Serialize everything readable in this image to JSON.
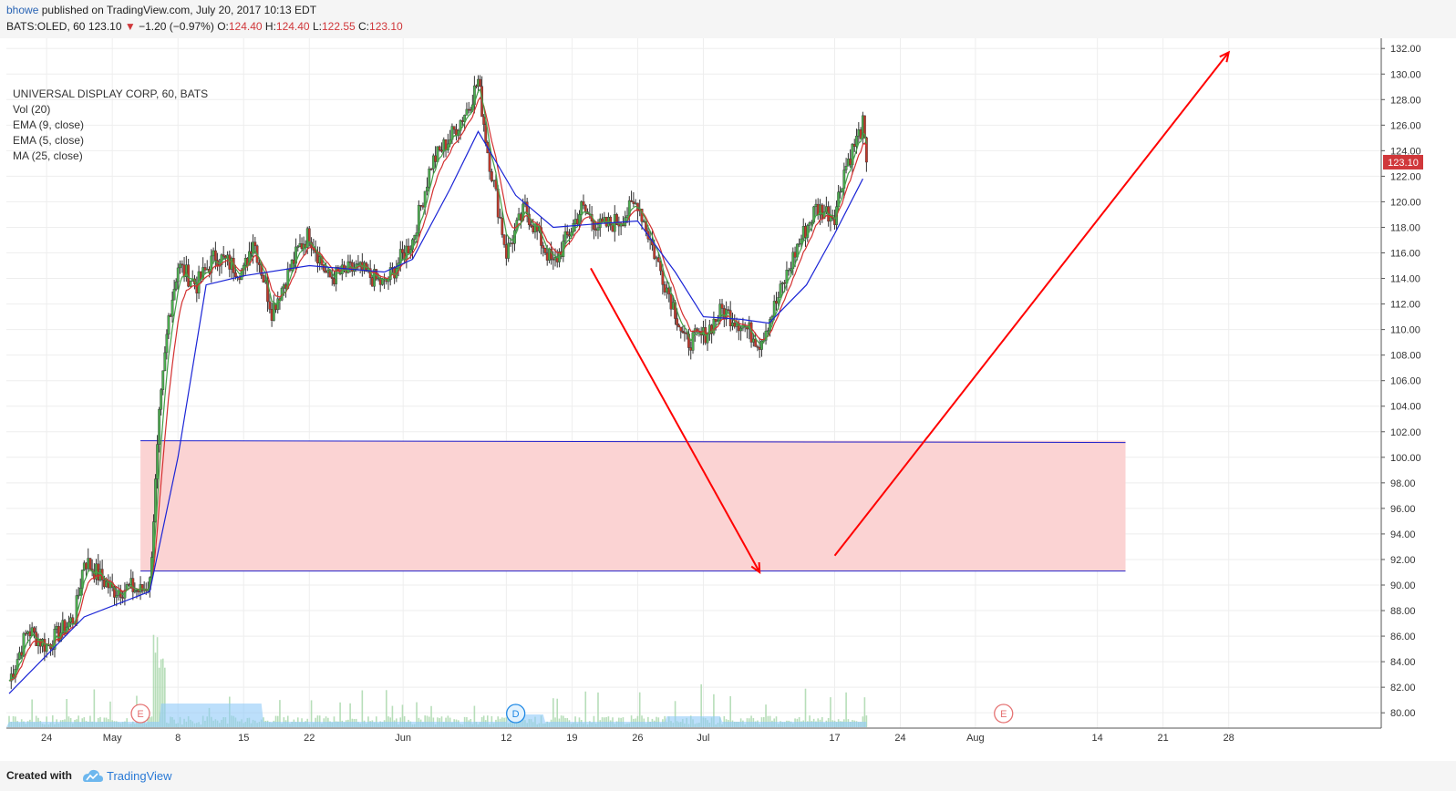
{
  "header": {
    "user": "bhowe",
    "published": "published on TradingView.com, July 20, 2017 10:13 EDT",
    "symbol": "BATS:OLED, 60",
    "last": "123.10",
    "change": "−1.20 (−0.97%)",
    "o_label": "O:",
    "o_value": "124.40",
    "h_label": "H:",
    "h_value": "124.40",
    "l_label": "L:",
    "l_value": "122.55",
    "c_label": "C:",
    "c_value": "123.10"
  },
  "legend": {
    "title": "UNIVERSAL DISPLAY CORP, 60, BATS",
    "vol": "Vol (20)",
    "ema9": "EMA (9, close)",
    "ema5": "EMA (5, close)",
    "ma25": "MA (25, close)"
  },
  "footer": {
    "created_with": "Created with",
    "brand": "TradingView"
  },
  "colors": {
    "up": "#4caf50",
    "down": "#c0392b",
    "ema9": "#d32f2f",
    "ema5": "#43a047",
    "ma25": "#1a24d6",
    "zone_fill": "#fbd3d3",
    "zone_line": "#2222cc",
    "arrow": "#ff0000",
    "price_tag": "#d0383b",
    "volume": "#a5d6a7",
    "volume_ma": "#90caf9"
  },
  "chart_data": {
    "type": "candlestick",
    "symbol": "BATS:OLED",
    "interval": "60",
    "ylim": [
      78.8,
      132.8
    ],
    "y_ticks": [
      "132.00",
      "130.00",
      "128.00",
      "126.00",
      "124.00",
      "122.00",
      "120.00",
      "118.00",
      "116.00",
      "114.00",
      "112.00",
      "110.00",
      "108.00",
      "106.00",
      "104.00",
      "102.00",
      "100.00",
      "98.00",
      "96.00",
      "94.00",
      "92.00",
      "90.00",
      "88.00",
      "86.00",
      "84.00",
      "82.00",
      "80.00"
    ],
    "x_ticks": [
      "24",
      "May",
      "8",
      "15",
      "22",
      "Jun",
      "12",
      "19",
      "26",
      "Jul",
      "17",
      "24",
      "Aug",
      "14",
      "21",
      "28"
    ],
    "last_price": "123.10",
    "price_path": [
      {
        "date": "Apr 20",
        "price": 82.5
      },
      {
        "date": "Apr 22",
        "price": 86.5
      },
      {
        "date": "Apr 24",
        "price": 85.2
      },
      {
        "date": "Apr 27",
        "price": 87.5
      },
      {
        "date": "Apr 28",
        "price": 92.0
      },
      {
        "date": "May 1",
        "price": 89.6
      },
      {
        "date": "May 3",
        "price": 89.8
      },
      {
        "date": "May 4",
        "price": 89.5
      },
      {
        "date": "May 5",
        "price": 90.2
      },
      {
        "date": "May 6",
        "price": 103.0
      },
      {
        "date": "May 7",
        "price": 111.0
      },
      {
        "date": "May 8",
        "price": 115.0
      },
      {
        "date": "May 10",
        "price": 113.5
      },
      {
        "date": "May 12",
        "price": 115.8
      },
      {
        "date": "May 15",
        "price": 114.5
      },
      {
        "date": "May 16",
        "price": 117.2
      },
      {
        "date": "May 18",
        "price": 111.5
      },
      {
        "date": "May 21",
        "price": 116.5
      },
      {
        "date": "May 22",
        "price": 117.5
      },
      {
        "date": "May 24",
        "price": 114.0
      },
      {
        "date": "May 27",
        "price": 114.8
      },
      {
        "date": "May 30",
        "price": 113.5
      },
      {
        "date": "Jun 2",
        "price": 117.0
      },
      {
        "date": "Jun 4",
        "price": 123.0
      },
      {
        "date": "Jun 6",
        "price": 125.0
      },
      {
        "date": "Jun 8",
        "price": 127.5
      },
      {
        "date": "Jun 9",
        "price": 129.5
      },
      {
        "date": "Jun 10",
        "price": 124.0
      },
      {
        "date": "Jun 12",
        "price": 116.0
      },
      {
        "date": "Jun 14",
        "price": 119.5
      },
      {
        "date": "Jun 17",
        "price": 115.0
      },
      {
        "date": "Jun 20",
        "price": 119.5
      },
      {
        "date": "Jun 22",
        "price": 118.0
      },
      {
        "date": "Jun 24",
        "price": 118.5
      },
      {
        "date": "Jun 26",
        "price": 120.0
      },
      {
        "date": "Jun 28",
        "price": 115.5
      },
      {
        "date": "Jun 30",
        "price": 111.5
      },
      {
        "date": "Jul 1",
        "price": 109.0
      },
      {
        "date": "Jul 3",
        "price": 109.5
      },
      {
        "date": "Jul 5",
        "price": 111.5
      },
      {
        "date": "Jul 7",
        "price": 110.5
      },
      {
        "date": "Jul 9",
        "price": 109.0
      },
      {
        "date": "Jul 11",
        "price": 112.5
      },
      {
        "date": "Jul 13",
        "price": 116.5
      },
      {
        "date": "Jul 15",
        "price": 119.5
      },
      {
        "date": "Jul 17",
        "price": 119.0
      },
      {
        "date": "Jul 18",
        "price": 122.5
      },
      {
        "date": "Jul 20",
        "price": 126.0
      },
      {
        "date": "Jul 20 close",
        "price": 123.1
      }
    ],
    "ma25_path": [
      {
        "date": "Apr 20",
        "price": 81.5
      },
      {
        "date": "Apr 28",
        "price": 87.5
      },
      {
        "date": "May 5",
        "price": 89.5
      },
      {
        "date": "May 8",
        "price": 100.0
      },
      {
        "date": "May 11",
        "price": 113.5
      },
      {
        "date": "May 15",
        "price": 114.2
      },
      {
        "date": "May 22",
        "price": 115.0
      },
      {
        "date": "May 30",
        "price": 114.5
      },
      {
        "date": "Jun 2",
        "price": 115.5
      },
      {
        "date": "Jun 6",
        "price": 121.0
      },
      {
        "date": "Jun 9",
        "price": 125.5
      },
      {
        "date": "Jun 13",
        "price": 120.5
      },
      {
        "date": "Jun 17",
        "price": 118.0
      },
      {
        "date": "Jun 22",
        "price": 118.3
      },
      {
        "date": "Jun 26",
        "price": 118.5
      },
      {
        "date": "Jun 30",
        "price": 114.5
      },
      {
        "date": "Jul 3",
        "price": 111.0
      },
      {
        "date": "Jul 7",
        "price": 110.8
      },
      {
        "date": "Jul 10",
        "price": 110.5
      },
      {
        "date": "Jul 14",
        "price": 113.5
      },
      {
        "date": "Jul 17",
        "price": 117.5
      },
      {
        "date": "Jul 20",
        "price": 121.8
      }
    ],
    "zone": {
      "from": "May 4",
      "to": "Aug 17",
      "top": 101.3,
      "bottom": 91.1
    },
    "annotations": [
      {
        "type": "arrow",
        "from": {
          "date": "Jun 21",
          "price": 114.8
        },
        "to": {
          "date": "Jul 9",
          "price": 91.0
        }
      },
      {
        "type": "arrow",
        "from": {
          "date": "Jul 17",
          "price": 92.3
        },
        "to": {
          "date": "Aug 28",
          "price": 131.7
        }
      }
    ],
    "events": [
      {
        "date": "May 4",
        "label": "E"
      },
      {
        "date": "Jun 13",
        "label": "D"
      },
      {
        "date": "Aug 4",
        "label": "E"
      }
    ],
    "grid": true,
    "legend_position": "top-left"
  }
}
